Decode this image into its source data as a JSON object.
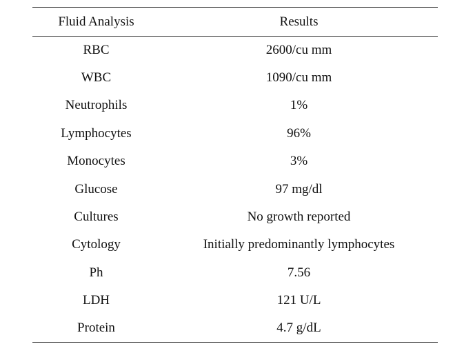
{
  "table": {
    "headers": [
      "Fluid Analysis",
      "Results"
    ],
    "rows": [
      [
        "RBC",
        "2600/cu mm"
      ],
      [
        "WBC",
        "1090/cu mm"
      ],
      [
        "Neutrophils",
        "1%"
      ],
      [
        "Lymphocytes",
        "96%"
      ],
      [
        "Monocytes",
        "3%"
      ],
      [
        "Glucose",
        "97 mg/dl"
      ],
      [
        "Cultures",
        "No growth reported"
      ],
      [
        "Cytology",
        "Initially predominantly lymphocytes"
      ],
      [
        "Ph",
        "7.56"
      ],
      [
        "LDH",
        "121 U/L"
      ],
      [
        "Protein",
        "4.7 g/dL"
      ]
    ]
  }
}
